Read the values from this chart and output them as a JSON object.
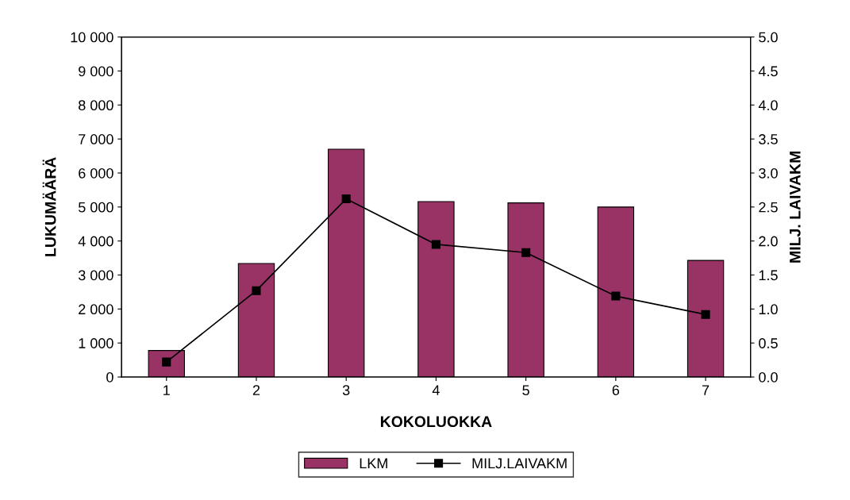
{
  "chart_data": {
    "type": "bar",
    "xlabel": "KOKOLUOKKA",
    "ylabel": "LUKUMÄÄRÄ",
    "y2label": "MILJ. LAIVAKM",
    "categories": [
      "1",
      "2",
      "3",
      "4",
      "5",
      "6",
      "7"
    ],
    "series": [
      {
        "name": "LKM",
        "color": "#993366",
        "values": [
          780,
          3340,
          6700,
          5160,
          5120,
          5000,
          3430
        ]
      },
      {
        "name": "MILJ.LAIVAKM",
        "type": "line",
        "axis": "y2",
        "color": "#000000",
        "marker": "square",
        "values": [
          0.22,
          1.27,
          2.62,
          1.95,
          1.83,
          1.19,
          0.92
        ]
      }
    ],
    "ylim": [
      0,
      10000
    ],
    "yticks": [
      0,
      {
        "value": 1000,
        "label": "1 000"
      },
      {
        "value": 2000,
        "label": "2 000"
      },
      {
        "value": 3000,
        "label": "3 000"
      },
      {
        "value": 4000,
        "label": "4 000"
      },
      {
        "value": 5000,
        "label": "5 000"
      },
      {
        "value": 6000,
        "label": "6 000"
      },
      {
        "value": 7000,
        "label": "7 000"
      },
      {
        "value": 8000,
        "label": "8 000"
      },
      {
        "value": 9000,
        "label": "9 000"
      },
      {
        "value": 10000,
        "label": "10 000"
      }
    ],
    "y2lim": [
      0,
      5
    ],
    "y2ticks": [
      {
        "value": 0,
        "label": "0.0"
      },
      0.5,
      {
        "value": 1,
        "label": "1.0"
      },
      1.5,
      {
        "value": 2,
        "label": "2.0"
      },
      2.5,
      {
        "value": 3,
        "label": "3.0"
      },
      3.5,
      {
        "value": 4,
        "label": "4.0"
      },
      4.5,
      {
        "value": 5,
        "label": "5.0"
      }
    ],
    "grid": false,
    "legend": "bottom"
  }
}
